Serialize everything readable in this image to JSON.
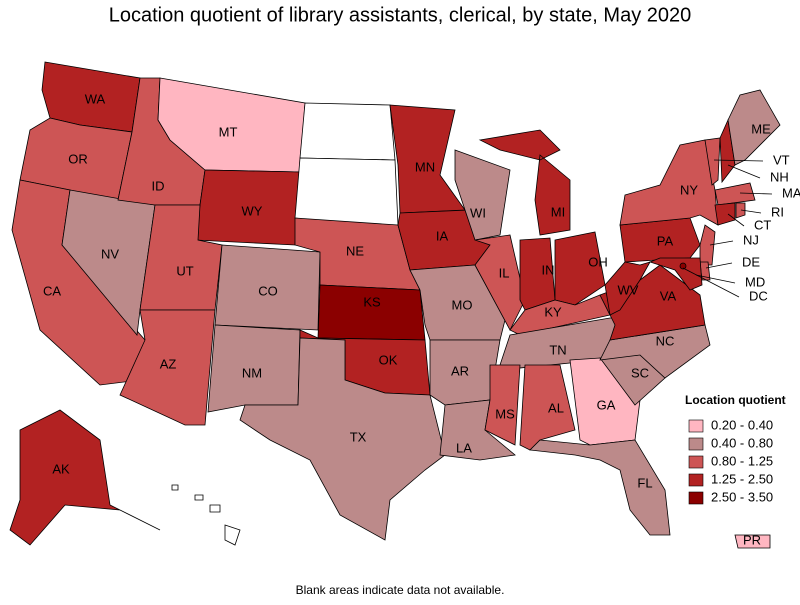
{
  "title": "Location quotient of library assistants, clerical, by state, May 2020",
  "note": "Blank areas indicate data not available.",
  "legend": {
    "title": "Location quotient",
    "items": [
      {
        "label": "0.20 - 0.40",
        "color": "#ffb6c1"
      },
      {
        "label": "0.40 - 0.80",
        "color": "#bc8a8a"
      },
      {
        "label": "0.80 - 1.25",
        "color": "#cd5555"
      },
      {
        "label": "1.25 - 2.50",
        "color": "#b22222"
      },
      {
        "label": "2.50 - 3.50",
        "color": "#8b0000"
      }
    ]
  },
  "states": [
    {
      "label": "WA",
      "color": "#b22222"
    },
    {
      "label": "OR",
      "color": "#cd5555"
    },
    {
      "label": "CA",
      "color": "#cd5555"
    },
    {
      "label": "NV",
      "color": "#bc8a8a"
    },
    {
      "label": "ID",
      "color": "#cd5555"
    },
    {
      "label": "MT",
      "color": "#ffb6c1"
    },
    {
      "label": "WY",
      "color": "#b22222"
    },
    {
      "label": "UT",
      "color": "#cd5555"
    },
    {
      "label": "AZ",
      "color": "#cd5555"
    },
    {
      "label": "CO",
      "color": "#bc8a8a"
    },
    {
      "label": "NM",
      "color": "#bc8a8a"
    },
    {
      "label": null,
      "color": "#ffffff"
    },
    {
      "label": null,
      "color": "#ffffff"
    },
    {
      "label": "NE",
      "color": "#cd5555"
    },
    {
      "label": "KS",
      "color": "#8b0000"
    },
    {
      "label": "OK",
      "color": "#b22222"
    },
    {
      "label": "TX",
      "color": "#bc8a8a"
    },
    {
      "label": "MN",
      "color": "#b22222"
    },
    {
      "label": "IA",
      "color": "#b22222"
    },
    {
      "label": "MO",
      "color": "#bc8a8a"
    },
    {
      "label": "AR",
      "color": "#bc8a8a"
    },
    {
      "label": "LA",
      "color": "#bc8a8a"
    },
    {
      "label": "WI",
      "color": "#bc8a8a"
    },
    {
      "label": "IL",
      "color": "#cd5555"
    },
    {
      "label": "MI",
      "color": "#b22222"
    },
    {
      "label": "IN",
      "color": "#b22222"
    },
    {
      "label": "OH",
      "color": "#b22222"
    },
    {
      "label": "KY",
      "color": "#cd5555"
    },
    {
      "label": "TN",
      "color": "#bc8a8a"
    },
    {
      "label": "MS",
      "color": "#cd5555"
    },
    {
      "label": "AL",
      "color": "#cd5555"
    },
    {
      "label": "GA",
      "color": "#ffb6c1"
    },
    {
      "label": "FL",
      "color": "#bc8a8a"
    },
    {
      "label": "SC",
      "color": "#bc8a8a"
    },
    {
      "label": "NC",
      "color": "#bc8a8a"
    },
    {
      "label": "VA",
      "color": "#b22222"
    },
    {
      "label": "WV",
      "color": "#b22222"
    },
    {
      "label": "PA",
      "color": "#b22222"
    },
    {
      "label": "NY",
      "color": "#cd5555"
    },
    {
      "label": "VT",
      "color": "#cd5555"
    },
    {
      "label": "NH",
      "color": "#b22222"
    },
    {
      "label": "ME",
      "color": "#bc8a8a"
    },
    {
      "label": "MA",
      "color": "#cd5555"
    },
    {
      "label": "CT",
      "color": "#b22222"
    },
    {
      "label": "RI",
      "color": "#cd5555"
    },
    {
      "label": "NJ",
      "color": "#cd5555"
    },
    {
      "label": "DE",
      "color": "#cd5555"
    },
    {
      "label": "MD",
      "color": "#b22222"
    },
    {
      "label": "DC",
      "color": "#8b0000"
    },
    {
      "label": "AK",
      "color": "#b22222"
    },
    {
      "label": null,
      "color": "#ffffff"
    },
    {
      "label": "PR",
      "color": "#ffb6c1"
    }
  ]
}
